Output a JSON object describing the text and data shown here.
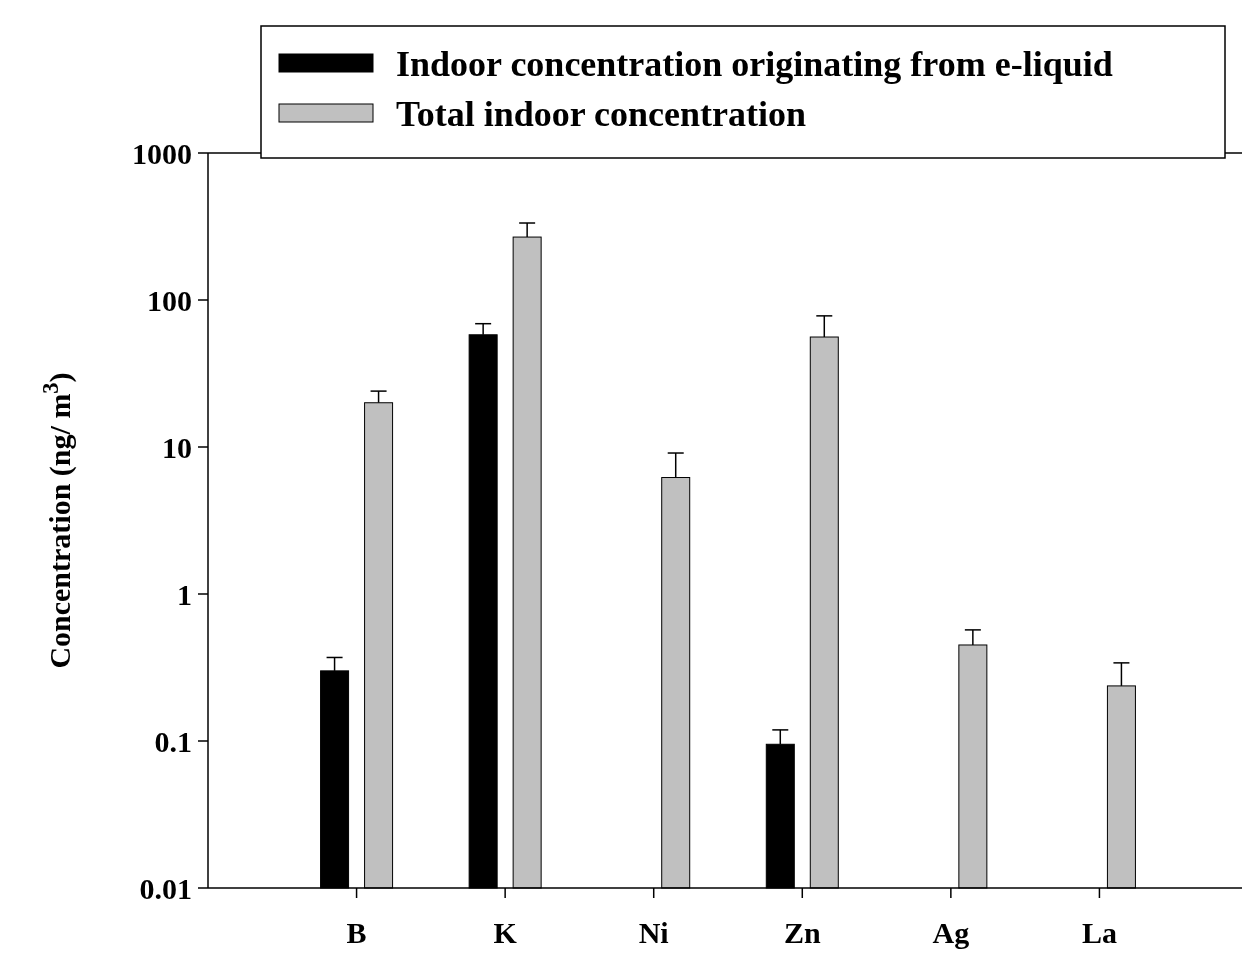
{
  "chart_data": {
    "type": "bar",
    "ylabel": "Concentration (ng/ m$^{3}$)",
    "categories": [
      "B",
      "K",
      "Ni",
      "Zn",
      "Ag",
      "La"
    ],
    "series": [
      {
        "name": "Indoor concentration originating from e-liquid",
        "color": "#000000",
        "values": [
          0.3,
          58,
          null,
          0.095,
          null,
          null
        ],
        "errors": [
          [
            0.3,
            0.37
          ],
          [
            58,
            69
          ],
          null,
          [
            0.095,
            0.119
          ],
          null,
          null
        ]
      },
      {
        "name": "Total indoor concentration",
        "color": "#c0c0c0",
        "values": [
          20,
          268,
          6.2,
          56,
          0.45,
          0.237
        ],
        "errors": [
          [
            20,
            24
          ],
          [
            268,
            334
          ],
          [
            6.2,
            9.1
          ],
          [
            56,
            78
          ],
          [
            0.45,
            0.57
          ],
          [
            0.237,
            0.34
          ]
        ]
      }
    ],
    "log": "y",
    "ylim": [
      0.01,
      1000
    ],
    "yticks": [
      0.01,
      0.1,
      1,
      10,
      100,
      1000
    ],
    "legend": "top",
    "grid": false
  }
}
